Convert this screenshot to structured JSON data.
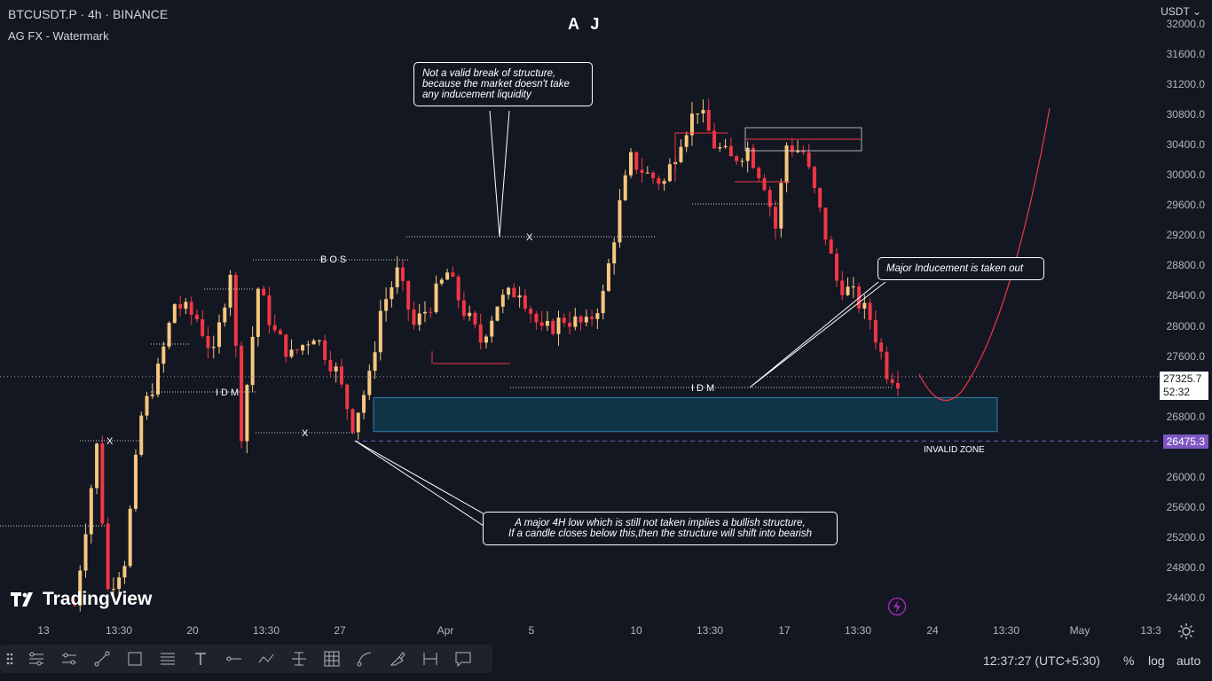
{
  "header": {
    "symbol_line": "BTCUSDT.P · 4h · BINANCE",
    "indicator_line": "AG FX - Watermark",
    "brand": "A J",
    "currency": "USDT"
  },
  "price_axis": {
    "ticks": [
      "32000.0",
      "31600.0",
      "31200.0",
      "30800.0",
      "30400.0",
      "30000.0",
      "29600.0",
      "29200.0",
      "28800.0",
      "28400.0",
      "28000.0",
      "27600.0",
      "26800.0",
      "26000.0",
      "25600.0",
      "25200.0",
      "24800.0",
      "24400.0"
    ],
    "current_price": "27325.7",
    "countdown": "52:32",
    "level_price": "26475.3"
  },
  "time_axis": {
    "ticks": [
      "13",
      "13:30",
      "20",
      "13:30",
      "27",
      "Apr",
      "5",
      "10",
      "13:30",
      "17",
      "13:30",
      "24",
      "13:30",
      "May",
      "13:3"
    ]
  },
  "chart_labels": {
    "bos": "BOS",
    "idm_left": "IDM",
    "idm_right": "IDM",
    "x_top": "X",
    "x_mid": "X",
    "x_left": "X",
    "invalid_zone": "INVALID ZONE"
  },
  "annotations": {
    "structure_note": "Not a valid break of structure,\nbecause the market doesn't take\n any inducement liquidity",
    "inducement_note": "Major Inducement is taken out",
    "low_note": "A major 4H low which is still not taken implies a bullish structure,\nIf a candle closes below this,then the structure will shift into bearish"
  },
  "bottom_bar": {
    "clock": "12:37:27 (UTC+5:30)",
    "percent": "%",
    "log": "log",
    "auto": "auto",
    "logo_text": "TradingView"
  },
  "toolbar": {
    "tools": [
      "multi-line-icon",
      "parallel-channel-icon",
      "trend-line-icon",
      "rectangle-icon",
      "horizontal-lines-icon",
      "text-icon",
      "horizontal-ray-icon",
      "path-icon",
      "fib-icon",
      "grid-icon",
      "curve-icon",
      "brush-icon",
      "measure-icon",
      "comment-icon"
    ]
  },
  "colors": {
    "background": "#131722",
    "bull": "#f7c77e",
    "bear": "#f23645",
    "zone": "#103447",
    "zone_border": "#2f7fa6",
    "level": "#7e57c2",
    "projection": "#f23645"
  },
  "chart_data": {
    "type": "candlestick",
    "title": "BTCUSDT.P · 4h · BINANCE",
    "ylim": [
      24200,
      32000
    ],
    "zone": [
      26600,
      27050
    ],
    "invalid_level": 26475.3,
    "current": 27325.7,
    "path": [
      [
        0,
        24300
      ],
      [
        4,
        26400
      ],
      [
        6,
        24500
      ],
      [
        9,
        24900
      ],
      [
        12,
        26800
      ],
      [
        15,
        27400
      ],
      [
        18,
        28300
      ],
      [
        22,
        28100
      ],
      [
        25,
        27600
      ],
      [
        28,
        28750
      ],
      [
        30,
        26600
      ],
      [
        33,
        28500
      ],
      [
        36,
        27900
      ],
      [
        39,
        27600
      ],
      [
        43,
        27900
      ],
      [
        47,
        27400
      ],
      [
        50,
        26700
      ],
      [
        53,
        27300
      ],
      [
        55,
        28200
      ],
      [
        58,
        28700
      ],
      [
        61,
        28000
      ],
      [
        64,
        28300
      ],
      [
        67,
        28700
      ],
      [
        70,
        28200
      ],
      [
        73,
        27800
      ],
      [
        76,
        28300
      ],
      [
        80,
        28500
      ],
      [
        84,
        27900
      ],
      [
        88,
        28100
      ],
      [
        92,
        28000
      ],
      [
        95,
        28400
      ],
      [
        98,
        29600
      ],
      [
        100,
        30200
      ],
      [
        103,
        30000
      ],
      [
        106,
        29900
      ],
      [
        109,
        30500
      ],
      [
        112,
        30900
      ],
      [
        115,
        30400
      ],
      [
        118,
        30200
      ],
      [
        121,
        30350
      ],
      [
        124,
        29900
      ],
      [
        126,
        29300
      ],
      [
        128,
        30400
      ],
      [
        131,
        30300
      ],
      [
        134,
        29500
      ],
      [
        137,
        28600
      ],
      [
        140,
        28400
      ],
      [
        143,
        28100
      ],
      [
        146,
        27400
      ],
      [
        148,
        27300
      ]
    ],
    "swing_points": [
      {
        "label": "BOS",
        "price": 28900
      },
      {
        "label": "IDM",
        "price": 27200
      },
      {
        "label": "X",
        "price": 29200
      },
      {
        "label": "X",
        "price": 26600
      },
      {
        "label": "X",
        "price": 26450
      }
    ],
    "projection": "bounce from 27000 to 30900"
  }
}
